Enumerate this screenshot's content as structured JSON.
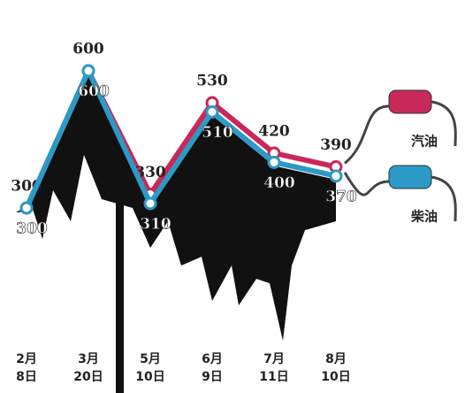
{
  "chart_data": {
    "type": "line",
    "categories": [
      "2月\n8日",
      "3月\n20日",
      "5月\n10日",
      "6月\n9日",
      "7月\n11日",
      "8月\n10日"
    ],
    "series": [
      {
        "name": "汽油",
        "color": "#c8285a",
        "values": [
          300,
          600,
          330,
          530,
          420,
          390
        ]
      },
      {
        "name": "柴油",
        "color": "#2b9ac6",
        "values": [
          300,
          600,
          310,
          510,
          400,
          370
        ]
      }
    ]
  }
}
